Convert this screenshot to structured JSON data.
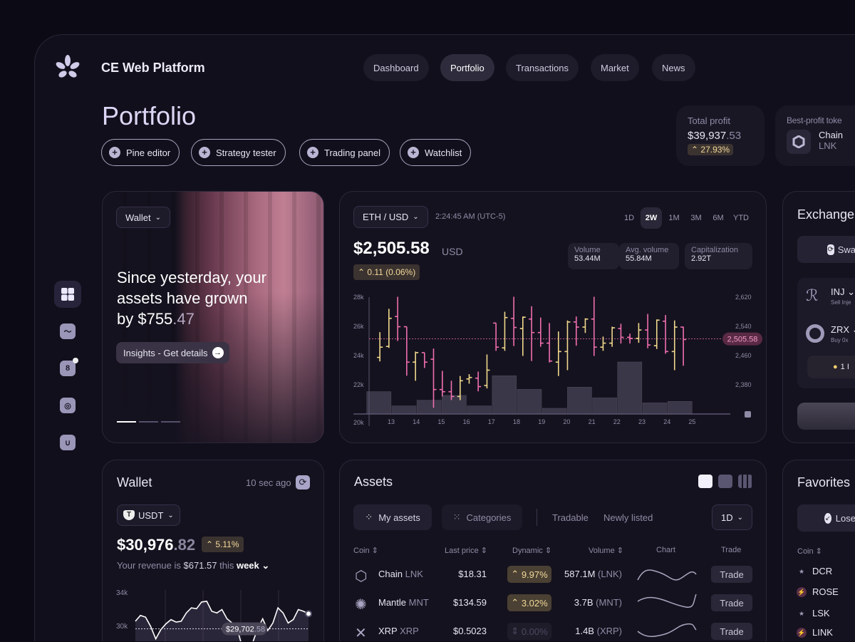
{
  "app": {
    "title": "CE Web Platform"
  },
  "nav": [
    {
      "label": "Dashboard"
    },
    {
      "label": "Portfolio",
      "active": true
    },
    {
      "label": "Transactions"
    },
    {
      "label": "Market"
    },
    {
      "label": "News"
    }
  ],
  "page": {
    "title": "Portfolio"
  },
  "tools": [
    {
      "label": "Pine editor"
    },
    {
      "label": "Strategy tester"
    },
    {
      "label": "Trading panel"
    },
    {
      "label": "Watchlist"
    }
  ],
  "stats": {
    "total_profit_label": "Total profit",
    "total_profit_main": "$39,937",
    "total_profit_cents": ".53",
    "total_profit_change": "27.93%",
    "best_label": "Best-profit toke",
    "best_name": "Chain",
    "best_ticker": "LNK"
  },
  "sidebar": [
    {
      "icon": "grid-icon",
      "active": true
    },
    {
      "icon": "trend-icon"
    },
    {
      "icon": "calendar-icon",
      "badge": "8"
    },
    {
      "icon": "fingerprint-icon"
    },
    {
      "icon": "bag-icon"
    }
  ],
  "hero": {
    "wallet_label": "Wallet",
    "line1": "Since yesterday, your",
    "line2": "assets have grown",
    "line3": "by $755",
    "cents": ".47",
    "cta": "Insights - Get details",
    "slide": 1,
    "slides": 3
  },
  "ticker": {
    "pair": "ETH / USD",
    "time": "2:24:45 AM (UTC-5)",
    "price": "$2,505.58",
    "currency": "USD",
    "change": "0.11 (0.06%)",
    "timeframes": [
      "1D",
      "2W",
      "1M",
      "3M",
      "6M",
      "YTD"
    ],
    "active_tf": "2W",
    "metrics": [
      {
        "label": "Volume",
        "value": "53.44M"
      },
      {
        "label": "Avg. volume",
        "value": "55.84M"
      },
      {
        "label": "Capitalization",
        "value": "2.92T"
      }
    ]
  },
  "chart_data": {
    "type": "ohlc",
    "x_ticks": [
      "13",
      "14",
      "15",
      "16",
      "17",
      "18",
      "19",
      "20",
      "21",
      "22",
      "23",
      "24",
      "25"
    ],
    "left_ticks": [
      "28k",
      "26k",
      "24k",
      "22k",
      "20k"
    ],
    "right_ticks": [
      "2,620",
      "2,540",
      "2,460",
      "2,380"
    ],
    "current_price": 2505.58,
    "current_label": "2,505.58",
    "ylim": [
      2300,
      2620
    ],
    "xlim": [
      12,
      25
    ],
    "up_color": "#f0d98c",
    "down_color": "#f06fb0",
    "candles": [
      {
        "t": 12.55,
        "o": 2455,
        "h": 2524,
        "l": 2444,
        "c": 2483
      },
      {
        "t": 12.91,
        "o": 2485,
        "h": 2588,
        "l": 2481,
        "c": 2562
      },
      {
        "t": 13.26,
        "o": 2567,
        "h": 2621,
        "l": 2500,
        "c": 2539
      },
      {
        "t": 13.62,
        "o": 2539,
        "h": 2539,
        "l": 2405,
        "c": 2442
      },
      {
        "t": 13.97,
        "o": 2442,
        "h": 2471,
        "l": 2391,
        "c": 2468
      },
      {
        "t": 14.33,
        "o": 2468,
        "h": 2468,
        "l": 2426,
        "c": 2442
      },
      {
        "t": 14.69,
        "o": 2450,
        "h": 2479,
        "l": 2317,
        "c": 2367
      },
      {
        "t": 15.04,
        "o": 2367,
        "h": 2418,
        "l": 2348,
        "c": 2361
      },
      {
        "t": 15.4,
        "o": 2361,
        "h": 2391,
        "l": 2338,
        "c": 2348
      },
      {
        "t": 15.75,
        "o": 2348,
        "h": 2404,
        "l": 2338,
        "c": 2391
      },
      {
        "t": 16.11,
        "o": 2396,
        "h": 2409,
        "l": 2383,
        "c": 2400
      },
      {
        "t": 16.47,
        "o": 2398,
        "h": 2416,
        "l": 2362,
        "c": 2375
      },
      {
        "t": 16.82,
        "o": 2378,
        "h": 2463,
        "l": 2370,
        "c": 2420
      },
      {
        "t": 17.18,
        "o": 2549,
        "h": 2549,
        "l": 2473,
        "c": 2483
      },
      {
        "t": 17.53,
        "o": 2481,
        "h": 2580,
        "l": 2473,
        "c": 2564
      },
      {
        "t": 17.89,
        "o": 2562,
        "h": 2621,
        "l": 2486,
        "c": 2537
      },
      {
        "t": 18.25,
        "o": 2534,
        "h": 2567,
        "l": 2459,
        "c": 2565
      },
      {
        "t": 18.6,
        "o": 2560,
        "h": 2595,
        "l": 2445,
        "c": 2523
      },
      {
        "t": 18.96,
        "o": 2523,
        "h": 2564,
        "l": 2484,
        "c": 2494
      },
      {
        "t": 19.31,
        "o": 2494,
        "h": 2549,
        "l": 2441,
        "c": 2445
      },
      {
        "t": 19.67,
        "o": 2442,
        "h": 2526,
        "l": 2404,
        "c": 2471
      },
      {
        "t": 20.03,
        "o": 2471,
        "h": 2556,
        "l": 2420,
        "c": 2552
      },
      {
        "t": 20.38,
        "o": 2552,
        "h": 2567,
        "l": 2487,
        "c": 2538
      },
      {
        "t": 20.74,
        "o": 2538,
        "h": 2562,
        "l": 2522,
        "c": 2560
      },
      {
        "t": 21.09,
        "o": 2560,
        "h": 2621,
        "l": 2459,
        "c": 2483
      },
      {
        "t": 21.45,
        "o": 2483,
        "h": 2512,
        "l": 2473,
        "c": 2494
      },
      {
        "t": 21.81,
        "o": 2494,
        "h": 2539,
        "l": 2484,
        "c": 2536
      },
      {
        "t": 22.16,
        "o": 2534,
        "h": 2547,
        "l": 2493,
        "c": 2510
      },
      {
        "t": 22.52,
        "o": 2510,
        "h": 2520,
        "l": 2493,
        "c": 2507
      },
      {
        "t": 22.87,
        "o": 2507,
        "h": 2549,
        "l": 2495,
        "c": 2530
      },
      {
        "t": 23.23,
        "o": 2530,
        "h": 2574,
        "l": 2480,
        "c": 2489
      },
      {
        "t": 23.59,
        "o": 2487,
        "h": 2559,
        "l": 2478,
        "c": 2557
      },
      {
        "t": 23.94,
        "o": 2554,
        "h": 2571,
        "l": 2465,
        "c": 2471
      },
      {
        "t": 24.3,
        "o": 2471,
        "h": 2556,
        "l": 2420,
        "c": 2538
      },
      {
        "t": 24.65,
        "o": 2538,
        "h": 2539,
        "l": 2432,
        "c": 2504
      }
    ],
    "volume": [
      {
        "day": 12,
        "v": 94
      },
      {
        "day": 13,
        "v": 34
      },
      {
        "day": 14,
        "v": 58
      },
      {
        "day": 15,
        "v": 78
      },
      {
        "day": 16,
        "v": 34
      },
      {
        "day": 17,
        "v": 161
      },
      {
        "day": 18,
        "v": 104
      },
      {
        "day": 19,
        "v": 24
      },
      {
        "day": 20,
        "v": 113
      },
      {
        "day": 21,
        "v": 68
      },
      {
        "day": 22,
        "v": 219
      },
      {
        "day": 23,
        "v": 47
      },
      {
        "day": 24,
        "v": 53
      }
    ]
  },
  "exchange": {
    "title": "Exchange",
    "swap": "Swa",
    "rows": [
      {
        "ticker": "INJ",
        "desc": "Sell Inje"
      },
      {
        "ticker": "ZRX",
        "desc": "Buy 0x"
      }
    ],
    "warning": "1 I"
  },
  "wallet": {
    "title": "Wallet",
    "updated": "10 sec ago",
    "token": "USDT",
    "balance": "$30,976",
    "cents": ".82",
    "change": "5.11%",
    "revenue_pre": "Your revenue is",
    "revenue": "$671.57",
    "revenue_mid": "this",
    "period": "week",
    "chart": {
      "type": "line",
      "y_ticks": [
        "34k",
        "30k"
      ],
      "values": [
        30.6,
        31.3,
        31.1,
        30,
        28.5,
        29.6,
        30.3,
        30.8,
        30.5,
        30.6,
        31.6,
        32.2,
        32.1,
        32.9,
        33.0,
        31.8,
        31.6,
        32.0,
        30.9,
        30.4,
        29.7,
        27.5,
        26.5,
        28.0,
        29.7,
        30.9,
        29.5,
        30.4,
        32.2,
        31.6,
        30.4,
        30.8,
        32.0,
        31.8,
        31.5
      ],
      "ref": 29.7,
      "ref_main": "$29,702",
      "ref_cents": ".58"
    }
  },
  "assets": {
    "title": "Assets",
    "tabs": [
      {
        "label": "My assets",
        "active": true
      },
      {
        "label": "Categories"
      }
    ],
    "filters": [
      "Tradable",
      "Newly listed"
    ],
    "period": "1D",
    "columns": [
      "Coin",
      "Last price",
      "Dynamic",
      "Volume",
      "Chart",
      "Trade"
    ],
    "rows": [
      {
        "name": "Chain",
        "ticker": "LNK",
        "price": "$18.31",
        "dynamic": "9.97%",
        "dir": "up",
        "volume": "587.1M",
        "vol_unit": "(LNK)",
        "trade": "Trade"
      },
      {
        "name": "Mantle",
        "ticker": "MNT",
        "price": "$134.59",
        "dynamic": "3.02%",
        "dir": "up",
        "volume": "3.7B",
        "vol_unit": "(MNT)",
        "trade": "Trade"
      },
      {
        "name": "XRP",
        "ticker": "XRP",
        "price": "$0.5023",
        "dynamic": "0.00%",
        "dir": "flat",
        "volume": "1.4B",
        "vol_unit": "(XRP)",
        "trade": "Trade"
      }
    ]
  },
  "favorites": {
    "title": "Favorites",
    "filter": "Lose",
    "column": "Coin",
    "items": [
      {
        "ticker": "DCR",
        "icon": "star-icon"
      },
      {
        "ticker": "ROSE",
        "icon": "bolt-icon"
      },
      {
        "ticker": "LSK",
        "icon": "star-icon"
      },
      {
        "ticker": "LINK",
        "icon": "bolt-icon"
      }
    ]
  }
}
